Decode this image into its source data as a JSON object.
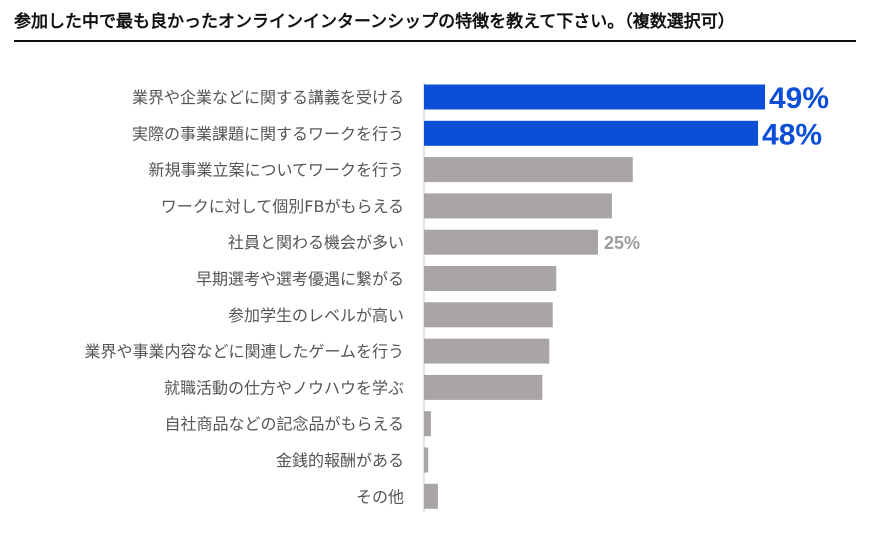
{
  "title": "参加した中で最も良かったオンラインインターンシップの特徴を教えて下さい。（複数選択可）",
  "colors": {
    "highlight": "#0a4fd6",
    "bar": "#a9a5a6",
    "axis": "#c8c8c8",
    "label": "#555555",
    "value_gray": "#a09c9d"
  },
  "chart_data": {
    "type": "bar",
    "orientation": "horizontal",
    "xlim": [
      0,
      49
    ],
    "categories": [
      "業界や企業などに関する講義を受ける",
      "実際の事業課題に関するワークを行う",
      "新規事業立案についてワークを行う",
      "ワークに対して個別FBがもらえる",
      "社員と関わる機会が多い",
      "早期選考や選考優遇に繋がる",
      "参加学生のレベルが高い",
      "業界や事業内容などに関連したゲームを行う",
      "就職活動の仕方やノウハウを学ぶ",
      "自社商品などの記念品がもらえる",
      "金銭的報酬がある",
      "その他"
    ],
    "values": [
      49,
      48,
      30,
      27,
      25,
      19,
      18.5,
      18,
      17,
      1,
      0.6,
      2
    ],
    "highlighted": [
      true,
      true,
      false,
      false,
      false,
      false,
      false,
      false,
      false,
      false,
      false,
      false
    ],
    "data_labels": [
      "49%",
      "48%",
      "",
      "",
      "25%",
      "",
      "",
      "",
      "",
      "",
      "",
      ""
    ]
  }
}
